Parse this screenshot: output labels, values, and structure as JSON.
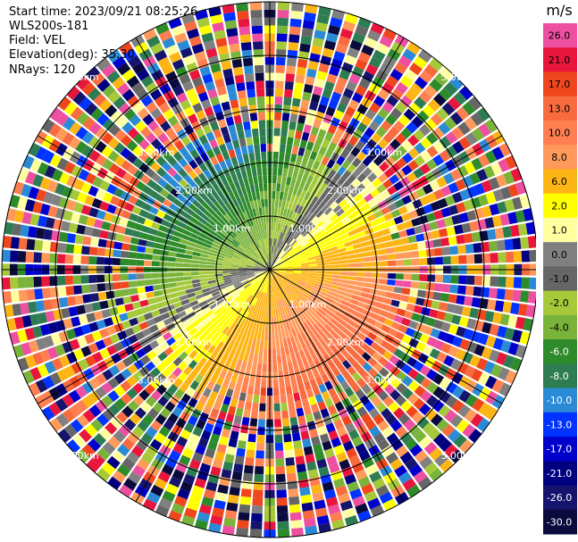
{
  "info": {
    "start_time": "Start time: 2023/09/21 08:25:26",
    "instrument": "WLS200s-181",
    "field": "Field: VEL",
    "elevation": "Elevation(deg): 35.30",
    "nrays": "NRays: 120"
  },
  "chart_data": {
    "type": "heatmap",
    "projection": "polar-ppi",
    "field": "VEL",
    "units": "m/s",
    "n_rays": 120,
    "elevation_deg": 35.3,
    "max_range_km": 5.0,
    "range_ring_labels_km": [
      "1.00km",
      "2.00km",
      "3.00km",
      "5.00km"
    ],
    "colorbar": {
      "unit_label": "m/s",
      "ticks": [
        "26.0",
        "21.0",
        "17.0",
        "13.0",
        "10.0",
        "8.0",
        "6.0",
        "2.0",
        "1.0",
        "0.0",
        "-1.0",
        "-2.0",
        "-4.0",
        "-6.0",
        "-8.0",
        "-10.0",
        "-13.0",
        "-17.0",
        "-21.0",
        "-26.0",
        "-30.0"
      ],
      "colors": [
        "#ee4fa0",
        "#e8163c",
        "#f0461e",
        "#f76b3f",
        "#ff7f50",
        "#ff9a5a",
        "#fdb515",
        "#ffff00",
        "#ffffa0",
        "#808080",
        "#666666",
        "#a6c93a",
        "#7ab33a",
        "#2e8b2a",
        "#2e7d52",
        "#2b8ad6",
        "#0033ff",
        "#0000cc",
        "#000080",
        "#14146e",
        "#0a0a3c"
      ]
    }
  }
}
